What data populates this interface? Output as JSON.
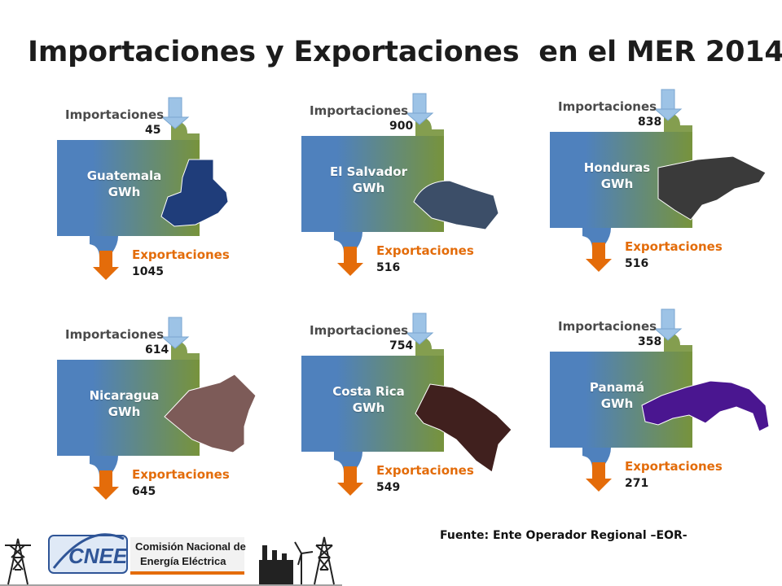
{
  "title": "Importaciones y Exportaciones  en el MER 2014",
  "source": "Fuente: Ente Operador Regional –EOR-",
  "logo": {
    "acronym": "CNEE",
    "line1": "Comisión Nacional de",
    "line2": "Energía Eléctrica"
  },
  "colors": {
    "flow_blue": "#4f81bd",
    "flow_green": "#77933c",
    "import_arrow": "#9dc3e6",
    "export_arrow": "#e46c0a",
    "export_text": "#e36c0a"
  },
  "countries": [
    {
      "name": "Guatemala",
      "unit": "GWh",
      "import_label": "Importaciones",
      "import_value": "45",
      "export_label": "Exportaciones",
      "export_value": "1045",
      "map_color": "#1f3d7a",
      "map_icon": "guatemala-map-icon"
    },
    {
      "name": "El Salvador",
      "unit": "GWh",
      "import_label": "Importaciones",
      "import_value": "900",
      "export_label": "Exportaciones",
      "export_value": "516",
      "map_color": "#3c4e68",
      "map_icon": "el-salvador-map-icon"
    },
    {
      "name": "Honduras",
      "unit": "GWh",
      "import_label": "Importaciones",
      "import_value": "838",
      "export_label": "Exportaciones",
      "export_value": "516",
      "map_color": "#3a3a3a",
      "map_icon": "honduras-map-icon"
    },
    {
      "name": "Nicaragua",
      "unit": "GWh",
      "import_label": "Importaciones",
      "import_value": "614",
      "export_label": "Exportaciones",
      "export_value": "645",
      "map_color": "#7d5b58",
      "map_icon": "nicaragua-map-icon"
    },
    {
      "name": "Costa Rica",
      "unit": "GWh",
      "import_label": "Importaciones",
      "import_value": "754",
      "export_label": "Exportaciones",
      "export_value": "549",
      "map_color": "#40201e",
      "map_icon": "costa-rica-map-icon"
    },
    {
      "name": "Panamá",
      "unit": "GWh",
      "import_label": "Importaciones",
      "import_value": "358",
      "export_label": "Exportaciones",
      "export_value": "271",
      "map_color": "#4a1690",
      "map_icon": "panama-map-icon"
    }
  ]
}
